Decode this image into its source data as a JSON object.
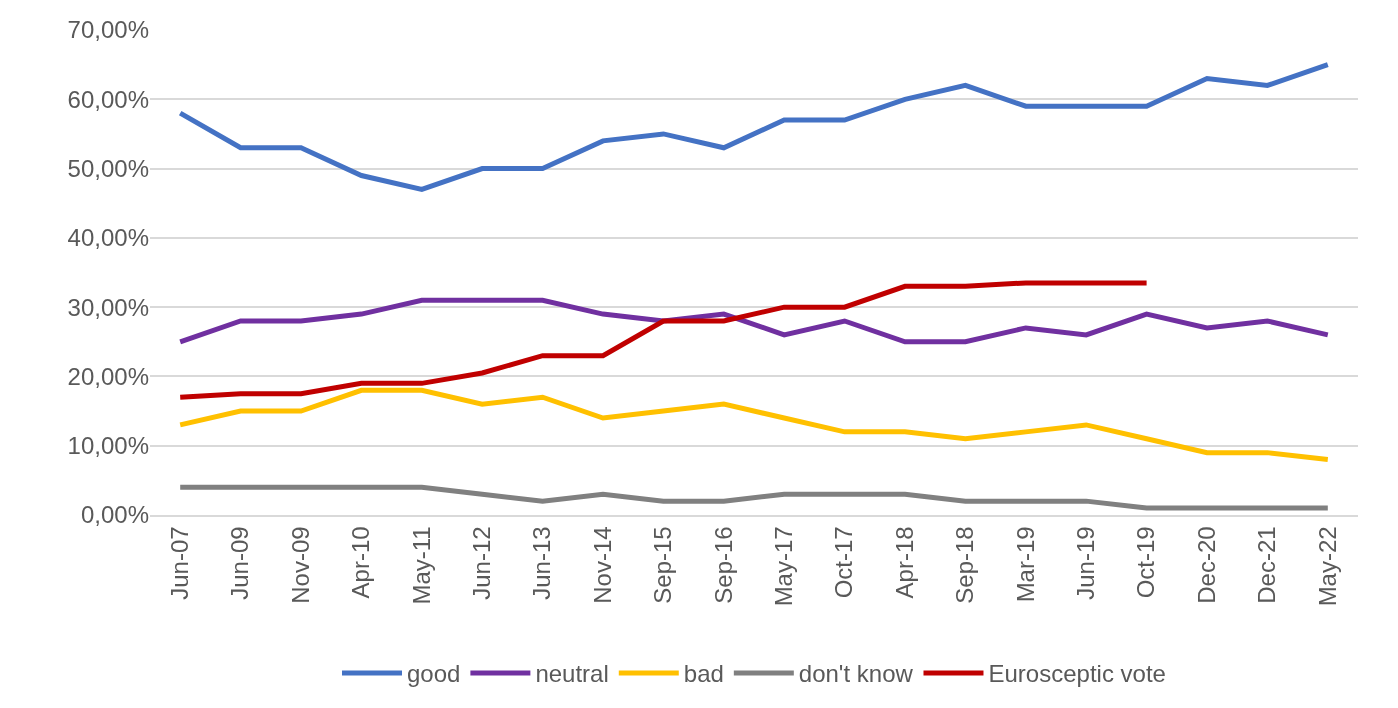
{
  "chart_data": {
    "type": "line",
    "categories": [
      "Jun-07",
      "Jun-09",
      "Nov-09",
      "Apr-10",
      "May-11",
      "Jun-12",
      "Jun-13",
      "Nov-14",
      "Sep-15",
      "Sep-16",
      "May-17",
      "Oct-17",
      "Apr-18",
      "Sep-18",
      "Mar-19",
      "Jun-19",
      "Oct-19",
      "Dec-20",
      "Dec-21",
      "May-22"
    ],
    "series": [
      {
        "name": "good",
        "color": "#4472c4",
        "values": [
          58,
          53,
          53,
          49,
          47,
          50,
          50,
          54,
          55,
          53,
          57,
          57,
          60,
          62,
          59,
          59,
          59,
          63,
          62,
          65
        ]
      },
      {
        "name": "neutral",
        "color": "#7030a0",
        "values": [
          25,
          28,
          28,
          29,
          31,
          31,
          31,
          29,
          28,
          29,
          26,
          28,
          25,
          25,
          27,
          26,
          29,
          27,
          28,
          26
        ]
      },
      {
        "name": "bad",
        "color": "#ffc000",
        "values": [
          13,
          15,
          15,
          18,
          18,
          16,
          17,
          14,
          15,
          16,
          14,
          12,
          12,
          11,
          12,
          13,
          11,
          9,
          9,
          8
        ]
      },
      {
        "name": "don't know",
        "color": "#808080",
        "values": [
          4,
          4,
          4,
          4,
          4,
          3,
          2,
          3,
          2,
          2,
          3,
          3,
          3,
          2,
          2,
          2,
          1,
          1,
          1,
          1
        ]
      },
      {
        "name": "Eurosceptic vote",
        "color": "#c00000",
        "values": [
          17,
          17.5,
          17.5,
          19,
          19,
          20.5,
          23,
          23,
          28,
          28,
          30,
          30,
          33,
          33,
          33.5,
          33.5,
          33.5,
          null,
          null,
          null
        ]
      }
    ],
    "ylim": [
      0,
      70
    ],
    "yticks": [
      {
        "value": 0,
        "label": "0,00%"
      },
      {
        "value": 10,
        "label": "10,00%"
      },
      {
        "value": 20,
        "label": "20,00%"
      },
      {
        "value": 30,
        "label": "30,00%"
      },
      {
        "value": 40,
        "label": "40,00%"
      },
      {
        "value": 50,
        "label": "50,00%"
      },
      {
        "value": 60,
        "label": "60,00%"
      },
      {
        "value": 70,
        "label": "70,00%"
      }
    ],
    "grid": "y",
    "legend": "bottom",
    "marker": "none",
    "line_style": "solid"
  }
}
